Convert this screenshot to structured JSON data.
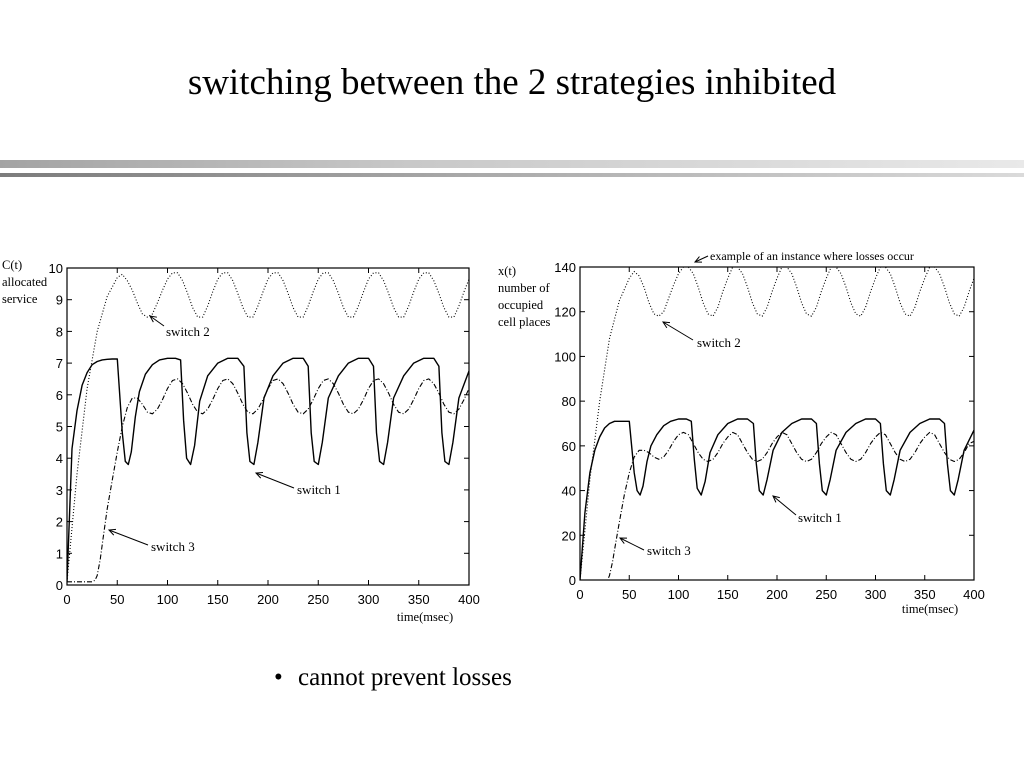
{
  "slide": {
    "title": "switching between the 2 strategies inhibited",
    "bullet": "cannot prevent losses"
  },
  "chart_data": [
    {
      "type": "line",
      "ylabel": "C(t) allocated service",
      "ylabel_lines": [
        "C(t)",
        "allocated",
        "service"
      ],
      "xlabel": "time(msec)",
      "xlim": [
        0,
        400
      ],
      "ylim": [
        0,
        10
      ],
      "x_ticks": [
        0,
        50,
        100,
        150,
        200,
        250,
        300,
        350,
        400
      ],
      "y_ticks": [
        0,
        1,
        2,
        3,
        4,
        5,
        6,
        7,
        8,
        9,
        10
      ],
      "grid": false,
      "series": [
        {
          "name": "switch 1",
          "style": "solid",
          "color": "#000000",
          "x": [
            0,
            5,
            10,
            15,
            20,
            25,
            30,
            35,
            40,
            45,
            50,
            52,
            55,
            58,
            61,
            64,
            68,
            72,
            78,
            85,
            92,
            100,
            108,
            113,
            116,
            119,
            123,
            127,
            132,
            140,
            150,
            160,
            170,
            176,
            179,
            182,
            186,
            190,
            196,
            205,
            215,
            225,
            235,
            240,
            243,
            246,
            250,
            254,
            260,
            270,
            280,
            290,
            300,
            305,
            308,
            311,
            315,
            319,
            325,
            335,
            345,
            355,
            365,
            370,
            373,
            376,
            380,
            384,
            390,
            400
          ],
          "y": [
            0.1,
            4.3,
            5.5,
            6.3,
            6.7,
            6.95,
            7.05,
            7.1,
            7.12,
            7.13,
            7.13,
            6.2,
            4.8,
            3.9,
            3.8,
            4.2,
            5.3,
            6.1,
            6.65,
            6.95,
            7.1,
            7.15,
            7.15,
            7.1,
            5.2,
            4.0,
            3.8,
            4.4,
            5.8,
            6.6,
            7.0,
            7.15,
            7.15,
            6.9,
            4.8,
            3.9,
            3.8,
            4.5,
            5.9,
            6.6,
            7.0,
            7.15,
            7.15,
            6.9,
            4.8,
            3.9,
            3.8,
            4.5,
            5.9,
            6.6,
            7.0,
            7.15,
            7.15,
            6.9,
            4.8,
            3.9,
            3.8,
            4.5,
            5.9,
            6.6,
            7.0,
            7.15,
            7.15,
            6.9,
            4.8,
            3.9,
            3.8,
            4.5,
            5.9,
            6.75
          ]
        },
        {
          "name": "switch 2",
          "style": "dotted",
          "color": "#000000",
          "x": [
            0,
            5,
            10,
            20,
            30,
            40,
            50,
            55,
            60,
            65,
            70,
            75,
            80,
            85,
            90,
            95,
            100,
            105,
            110,
            115,
            120,
            125,
            130,
            135,
            140,
            145,
            150,
            155,
            160,
            165,
            170,
            175,
            180,
            185,
            190,
            195,
            200,
            205,
            210,
            215,
            220,
            225,
            230,
            235,
            240,
            245,
            250,
            255,
            260,
            265,
            270,
            275,
            280,
            285,
            290,
            295,
            300,
            305,
            310,
            315,
            320,
            325,
            330,
            335,
            340,
            345,
            350,
            355,
            360,
            365,
            370,
            375,
            380,
            385,
            390,
            395,
            400
          ],
          "y": [
            0.1,
            1.8,
            3.5,
            6.2,
            8.0,
            9.1,
            9.7,
            9.8,
            9.6,
            9.3,
            8.9,
            8.55,
            8.45,
            8.55,
            8.9,
            9.3,
            9.65,
            9.85,
            9.85,
            9.6,
            9.2,
            8.75,
            8.45,
            8.45,
            8.8,
            9.25,
            9.65,
            9.85,
            9.85,
            9.6,
            9.2,
            8.75,
            8.45,
            8.45,
            8.8,
            9.25,
            9.65,
            9.85,
            9.85,
            9.6,
            9.2,
            8.75,
            8.45,
            8.45,
            8.8,
            9.25,
            9.65,
            9.85,
            9.85,
            9.6,
            9.2,
            8.75,
            8.45,
            8.45,
            8.8,
            9.25,
            9.65,
            9.85,
            9.85,
            9.6,
            9.2,
            8.75,
            8.45,
            8.45,
            8.8,
            9.25,
            9.65,
            9.85,
            9.85,
            9.6,
            9.2,
            8.75,
            8.45,
            8.45,
            8.8,
            9.25,
            9.65
          ]
        },
        {
          "name": "switch 3",
          "style": "dashdot",
          "color": "#000000",
          "x": [
            0,
            5,
            10,
            15,
            20,
            25,
            28,
            30,
            33,
            36,
            40,
            45,
            50,
            55,
            60,
            65,
            70,
            75,
            80,
            85,
            90,
            95,
            100,
            105,
            110,
            115,
            120,
            125,
            130,
            135,
            140,
            145,
            150,
            155,
            160,
            165,
            170,
            175,
            180,
            185,
            190,
            195,
            200,
            205,
            210,
            215,
            220,
            225,
            230,
            235,
            240,
            245,
            250,
            255,
            260,
            265,
            270,
            275,
            280,
            285,
            290,
            295,
            300,
            305,
            310,
            315,
            320,
            325,
            330,
            335,
            340,
            345,
            350,
            355,
            360,
            365,
            370,
            375,
            380,
            385,
            390,
            395,
            400
          ],
          "y": [
            0.1,
            0.1,
            0.1,
            0.1,
            0.1,
            0.1,
            0.15,
            0.3,
            0.8,
            1.5,
            2.4,
            3.3,
            4.2,
            5.0,
            5.6,
            5.9,
            5.9,
            5.7,
            5.45,
            5.4,
            5.55,
            5.85,
            6.2,
            6.45,
            6.5,
            6.35,
            6.05,
            5.7,
            5.45,
            5.4,
            5.55,
            5.85,
            6.2,
            6.45,
            6.5,
            6.35,
            6.05,
            5.7,
            5.45,
            5.4,
            5.55,
            5.85,
            6.2,
            6.45,
            6.5,
            6.35,
            6.05,
            5.7,
            5.45,
            5.4,
            5.55,
            5.85,
            6.2,
            6.45,
            6.5,
            6.35,
            6.05,
            5.7,
            5.45,
            5.4,
            5.55,
            5.85,
            6.2,
            6.45,
            6.5,
            6.35,
            6.05,
            5.7,
            5.45,
            5.4,
            5.55,
            5.85,
            6.2,
            6.45,
            6.5,
            6.35,
            6.05,
            5.7,
            5.45,
            5.4,
            5.55,
            5.85,
            6.2
          ]
        }
      ],
      "annotations": [
        {
          "text": "switch 2",
          "at": [
            70,
            8.45
          ]
        },
        {
          "text": "switch 1",
          "at": [
            186,
            3.6
          ]
        },
        {
          "text": "switch 3",
          "at": [
            38,
            1.7
          ]
        }
      ]
    },
    {
      "type": "line",
      "ylabel": "x(t) number of occupied cell places",
      "ylabel_lines": [
        "x(t)",
        "number of",
        "occupied",
        "cell places"
      ],
      "xlabel": "time(msec)",
      "xlim": [
        0,
        400
      ],
      "ylim": [
        0,
        140
      ],
      "x_ticks": [
        0,
        50,
        100,
        150,
        200,
        250,
        300,
        350,
        400
      ],
      "y_ticks": [
        0,
        20,
        40,
        60,
        80,
        100,
        120,
        140
      ],
      "grid": false,
      "series": [
        {
          "name": "switch 1",
          "style": "solid",
          "color": "#000000",
          "x": [
            0,
            5,
            10,
            15,
            20,
            25,
            30,
            35,
            40,
            45,
            50,
            52,
            55,
            58,
            61,
            64,
            68,
            72,
            78,
            85,
            92,
            100,
            108,
            113,
            116,
            119,
            123,
            127,
            132,
            140,
            150,
            160,
            170,
            176,
            179,
            182,
            186,
            190,
            196,
            205,
            215,
            225,
            235,
            240,
            243,
            246,
            250,
            254,
            260,
            270,
            280,
            290,
            300,
            305,
            308,
            311,
            315,
            319,
            325,
            335,
            345,
            355,
            365,
            370,
            373,
            376,
            380,
            384,
            390,
            400
          ],
          "y": [
            0,
            30,
            48,
            58,
            64,
            68,
            70,
            71,
            71,
            71,
            71,
            62,
            48,
            40,
            38,
            42,
            53,
            60,
            65,
            69,
            71,
            72,
            72,
            71,
            54,
            41,
            38,
            44,
            57,
            65,
            70,
            72,
            72,
            70,
            52,
            40,
            38,
            45,
            58,
            66,
            70,
            72,
            72,
            70,
            52,
            40,
            38,
            45,
            58,
            66,
            70,
            72,
            72,
            70,
            52,
            40,
            38,
            45,
            58,
            66,
            70,
            72,
            72,
            70,
            52,
            40,
            38,
            45,
            58,
            67
          ]
        },
        {
          "name": "switch 2",
          "style": "dotted",
          "color": "#000000",
          "x": [
            0,
            5,
            10,
            20,
            30,
            40,
            50,
            55,
            60,
            65,
            70,
            75,
            80,
            85,
            90,
            95,
            100,
            105,
            110,
            115,
            120,
            125,
            130,
            135,
            140,
            145,
            150,
            155,
            160,
            165,
            170,
            175,
            180,
            185,
            190,
            195,
            200,
            205,
            210,
            215,
            220,
            225,
            230,
            235,
            240,
            245,
            250,
            255,
            260,
            265,
            270,
            275,
            280,
            285,
            290,
            295,
            300,
            305,
            310,
            315,
            320,
            325,
            330,
            335,
            340,
            345,
            350,
            355,
            360,
            365,
            370,
            375,
            380,
            385,
            390,
            395,
            400
          ],
          "y": [
            0,
            22,
            45,
            80,
            108,
            125,
            135,
            138,
            136,
            131,
            124,
            119,
            118,
            120,
            126,
            132,
            137,
            140,
            140,
            137,
            131,
            124,
            119,
            118,
            122,
            129,
            135,
            140,
            140,
            137,
            131,
            124,
            119,
            118,
            122,
            129,
            135,
            140,
            140,
            137,
            131,
            124,
            119,
            118,
            122,
            129,
            135,
            140,
            140,
            137,
            131,
            124,
            119,
            118,
            122,
            129,
            135,
            140,
            140,
            137,
            131,
            124,
            119,
            118,
            122,
            129,
            135,
            140,
            140,
            137,
            131,
            124,
            119,
            118,
            122,
            129,
            135
          ]
        },
        {
          "name": "switch 3",
          "style": "dashdot",
          "color": "#000000",
          "x": [
            0,
            5,
            10,
            15,
            20,
            25,
            28,
            30,
            33,
            36,
            40,
            45,
            50,
            55,
            60,
            65,
            70,
            75,
            80,
            85,
            90,
            95,
            100,
            105,
            110,
            115,
            120,
            125,
            130,
            135,
            140,
            145,
            150,
            155,
            160,
            165,
            170,
            175,
            180,
            185,
            190,
            195,
            200,
            205,
            210,
            215,
            220,
            225,
            230,
            235,
            240,
            245,
            250,
            255,
            260,
            265,
            270,
            275,
            280,
            285,
            290,
            295,
            300,
            305,
            310,
            315,
            320,
            325,
            330,
            335,
            340,
            345,
            350,
            355,
            360,
            365,
            370,
            375,
            380,
            385,
            390,
            395,
            400
          ],
          "y": [
            0,
            0,
            0,
            0,
            0,
            0,
            0,
            2,
            8,
            16,
            26,
            38,
            48,
            55,
            58,
            58,
            57,
            55,
            54,
            55,
            58,
            62,
            65,
            66,
            65,
            61,
            57,
            54,
            53,
            54,
            57,
            61,
            64,
            66,
            65,
            61,
            57,
            54,
            53,
            54,
            57,
            61,
            64,
            66,
            65,
            61,
            57,
            54,
            53,
            54,
            57,
            61,
            64,
            66,
            65,
            61,
            57,
            54,
            53,
            54,
            57,
            61,
            64,
            66,
            65,
            61,
            57,
            54,
            53,
            54,
            57,
            61,
            64,
            66,
            65,
            61,
            57,
            54,
            53,
            54,
            57,
            61,
            62
          ]
        }
      ],
      "annotations": [
        {
          "text": "example of an instance where losses occur",
          "at": [
            115,
            140
          ]
        },
        {
          "text": "switch 2",
          "at": [
            85,
            118
          ]
        },
        {
          "text": "switch 1",
          "at": [
            196,
            38
          ]
        },
        {
          "text": "switch 3",
          "at": [
            40,
            18
          ]
        }
      ]
    }
  ]
}
